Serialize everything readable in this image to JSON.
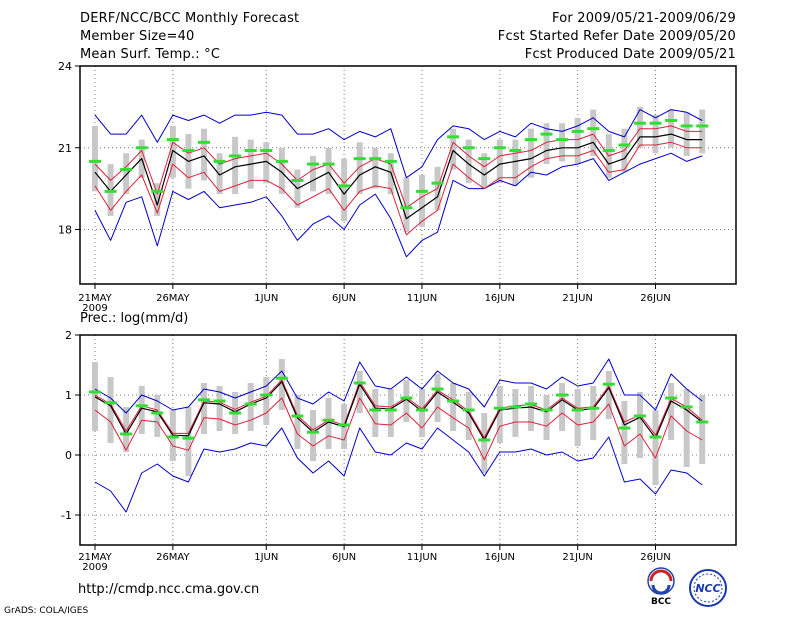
{
  "header": {
    "title": "DERF/NCC/BCC Monthly Forecast",
    "member_size": "Member Size=40",
    "variable": "Mean Surf. Temp.: °C",
    "valid_period": "For 2009/05/21-2009/06/29",
    "refer_date": "Fcst Started Refer Date 2009/05/20",
    "produced_date": "Fcst Produced Date 2009/05/21"
  },
  "footer": {
    "url": "http://cmdp.ncc.cma.gov.cn",
    "credit": "GrADS: COLA/IGES",
    "logo_bcc": "BCC",
    "logo_ncc": "NCC"
  },
  "colors": {
    "ensemble_mean": "#000000",
    "inner_spread": "#e0203a",
    "outer_spread": "#0000cc",
    "box": "#c8c8c8",
    "member_marker": "#33dd33"
  },
  "chart_data": [
    {
      "type": "line",
      "title": "Mean Surf. Temp.: °C",
      "x_tick_labels": [
        "21MAY",
        "26MAY",
        "1JUN",
        "6JUN",
        "11JUN",
        "16JUN",
        "21JUN",
        "26JUN"
      ],
      "x_tick_index": [
        0,
        5,
        11,
        16,
        21,
        26,
        31,
        36
      ],
      "year_label": "2009",
      "ylim": [
        16,
        24
      ],
      "y_ticks": [
        18,
        21,
        24
      ],
      "grid": true,
      "series": [
        {
          "name": "ensemble mean",
          "values": [
            20.1,
            19.4,
            20.0,
            20.6,
            18.9,
            20.9,
            20.5,
            20.7,
            20.0,
            20.3,
            20.4,
            20.5,
            20.1,
            19.5,
            19.8,
            20.1,
            19.3,
            20.0,
            20.3,
            20.1,
            18.4,
            18.8,
            19.2,
            20.9,
            20.4,
            20.0,
            20.4,
            20.5,
            20.6,
            20.9,
            21.0,
            21.0,
            21.2,
            20.4,
            20.6,
            21.4,
            21.4,
            21.5,
            21.3,
            21.3
          ]
        },
        {
          "name": "upper red",
          "values": [
            20.4,
            19.8,
            20.3,
            20.9,
            19.3,
            21.2,
            20.8,
            21.0,
            20.4,
            20.6,
            20.7,
            20.8,
            20.4,
            19.8,
            20.2,
            20.4,
            19.7,
            20.3,
            20.6,
            20.4,
            18.8,
            19.2,
            19.5,
            21.2,
            20.7,
            20.3,
            20.7,
            20.8,
            20.9,
            21.2,
            21.3,
            21.3,
            21.5,
            20.7,
            20.9,
            21.7,
            21.7,
            21.8,
            21.6,
            21.6
          ]
        },
        {
          "name": "lower red",
          "values": [
            19.6,
            18.7,
            19.4,
            20.0,
            18.6,
            20.4,
            19.9,
            20.1,
            19.4,
            19.6,
            19.8,
            19.8,
            19.5,
            18.9,
            19.2,
            19.5,
            18.7,
            19.4,
            19.6,
            19.5,
            17.8,
            18.3,
            18.7,
            20.4,
            19.9,
            19.5,
            19.9,
            19.9,
            20.3,
            20.6,
            20.7,
            20.7,
            20.9,
            20.1,
            20.2,
            21.1,
            21.1,
            21.2,
            21.0,
            21.0
          ]
        },
        {
          "name": "upper blue",
          "values": [
            22.2,
            21.5,
            21.5,
            22.2,
            21.2,
            22.2,
            22.0,
            22.2,
            21.9,
            22.2,
            22.2,
            22.3,
            22.2,
            21.5,
            21.5,
            21.7,
            21.3,
            21.6,
            21.4,
            21.7,
            19.9,
            20.3,
            21.3,
            21.8,
            21.7,
            21.3,
            21.6,
            21.4,
            21.9,
            21.7,
            21.6,
            21.8,
            22.1,
            21.6,
            21.4,
            22.4,
            22.1,
            22.4,
            22.3,
            22.0
          ]
        },
        {
          "name": "lower blue",
          "values": [
            18.7,
            17.6,
            19.0,
            19.2,
            17.4,
            19.4,
            19.1,
            19.4,
            18.8,
            18.9,
            19.0,
            19.2,
            18.5,
            17.6,
            18.2,
            18.5,
            18.0,
            18.9,
            19.3,
            18.4,
            17.0,
            17.6,
            17.9,
            19.8,
            19.5,
            19.5,
            19.8,
            19.6,
            20.1,
            20.0,
            20.3,
            20.4,
            20.6,
            19.8,
            20.1,
            20.4,
            20.6,
            20.8,
            20.5,
            20.7
          ]
        },
        {
          "name": "box top",
          "values": [
            21.8,
            20.4,
            20.8,
            21.3,
            19.7,
            21.8,
            21.5,
            21.7,
            20.8,
            21.4,
            21.3,
            21.2,
            21.0,
            20.2,
            20.7,
            21.0,
            20.6,
            21.2,
            21.0,
            20.8,
            19.9,
            20.0,
            20.3,
            21.7,
            21.3,
            20.8,
            21.3,
            21.3,
            21.7,
            21.9,
            21.9,
            22.1,
            22.4,
            21.5,
            21.7,
            22.5,
            22.2,
            22.4,
            22.3,
            22.4
          ]
        },
        {
          "name": "box bottom",
          "values": [
            19.4,
            18.5,
            19.3,
            19.9,
            18.5,
            19.9,
            19.5,
            19.8,
            19.3,
            19.3,
            19.5,
            19.7,
            19.3,
            18.8,
            19.4,
            19.3,
            18.3,
            19.3,
            19.5,
            19.3,
            17.9,
            18.1,
            18.7,
            20.2,
            19.7,
            19.5,
            19.7,
            19.6,
            19.9,
            20.4,
            20.5,
            20.4,
            20.7,
            19.9,
            20.1,
            21.0,
            20.8,
            21.0,
            20.7,
            20.8
          ]
        },
        {
          "name": "member marker",
          "values": [
            20.5,
            19.4,
            20.2,
            21.0,
            19.4,
            21.3,
            20.9,
            21.2,
            20.5,
            20.7,
            20.9,
            20.9,
            20.5,
            19.8,
            20.4,
            20.4,
            19.6,
            20.6,
            20.6,
            20.5,
            18.8,
            19.4,
            19.7,
            21.4,
            21.0,
            20.6,
            21.0,
            20.9,
            21.3,
            21.5,
            21.3,
            21.6,
            21.7,
            20.9,
            21.1,
            21.9,
            21.9,
            22.0,
            21.8,
            21.8
          ]
        }
      ]
    },
    {
      "type": "line",
      "title": "Prec.: log(mm/d)",
      "x_tick_labels": [
        "21MAY",
        "26MAY",
        "1JUN",
        "6JUN",
        "11JUN",
        "16JUN",
        "21JUN",
        "26JUN"
      ],
      "x_tick_index": [
        0,
        5,
        11,
        16,
        21,
        26,
        31,
        36
      ],
      "year_label": "2009",
      "ylim": [
        -1.5,
        2
      ],
      "y_ticks": [
        -1,
        0,
        1,
        2
      ],
      "grid": true,
      "series": [
        {
          "name": "ensemble mean",
          "values": [
            0.97,
            0.82,
            0.35,
            0.78,
            0.72,
            0.33,
            0.32,
            0.87,
            0.85,
            0.72,
            0.85,
            0.95,
            1.22,
            0.62,
            0.38,
            0.55,
            0.47,
            1.18,
            0.78,
            0.77,
            0.93,
            0.73,
            1.05,
            0.88,
            0.7,
            0.25,
            0.75,
            0.78,
            0.8,
            0.72,
            0.92,
            0.75,
            0.77,
            1.12,
            0.5,
            0.63,
            0.28,
            0.9,
            0.75,
            0.55
          ]
        },
        {
          "name": "upper red",
          "values": [
            1.0,
            0.85,
            0.4,
            0.82,
            0.75,
            0.36,
            0.36,
            0.9,
            0.88,
            0.76,
            0.88,
            0.98,
            1.25,
            0.66,
            0.42,
            0.58,
            0.5,
            1.22,
            0.82,
            0.8,
            0.96,
            0.77,
            1.08,
            0.92,
            0.73,
            0.29,
            0.78,
            0.82,
            0.84,
            0.75,
            0.95,
            0.78,
            0.8,
            1.15,
            0.55,
            0.67,
            0.33,
            0.94,
            0.8,
            0.58
          ]
        },
        {
          "name": "lower red",
          "values": [
            0.75,
            0.55,
            0.08,
            0.58,
            0.55,
            0.15,
            0.08,
            0.62,
            0.6,
            0.5,
            0.58,
            0.7,
            0.95,
            0.35,
            0.15,
            0.32,
            0.25,
            0.95,
            0.52,
            0.5,
            0.7,
            0.45,
            0.8,
            0.62,
            0.45,
            -0.08,
            0.48,
            0.55,
            0.55,
            0.48,
            0.7,
            0.5,
            0.55,
            0.85,
            0.15,
            0.35,
            -0.05,
            0.65,
            0.4,
            0.25
          ]
        },
        {
          "name": "upper blue",
          "values": [
            1.1,
            0.95,
            0.7,
            1.0,
            0.9,
            0.75,
            0.8,
            1.1,
            1.05,
            0.95,
            1.05,
            1.15,
            1.4,
            0.95,
            0.85,
            1.05,
            0.9,
            1.55,
            1.15,
            1.1,
            1.3,
            1.1,
            1.4,
            1.2,
            1.1,
            0.8,
            1.25,
            1.2,
            1.2,
            1.1,
            1.3,
            1.15,
            1.2,
            1.6,
            1.0,
            1.0,
            0.75,
            1.35,
            1.1,
            0.9
          ]
        },
        {
          "name": "lower blue",
          "values": [
            -0.45,
            -0.6,
            -0.95,
            -0.3,
            -0.15,
            -0.35,
            -0.45,
            0.1,
            0.05,
            0.1,
            0.2,
            0.15,
            0.45,
            -0.05,
            -0.3,
            -0.1,
            -0.35,
            0.45,
            0.05,
            0.0,
            0.2,
            0.1,
            0.45,
            0.25,
            0.05,
            -0.35,
            0.05,
            0.05,
            0.1,
            0.0,
            0.05,
            -0.1,
            -0.05,
            0.3,
            -0.45,
            -0.4,
            -0.65,
            -0.25,
            -0.3,
            -0.5
          ]
        },
        {
          "name": "box top",
          "values": [
            1.55,
            1.3,
            0.8,
            1.15,
            1.0,
            0.75,
            0.8,
            1.2,
            1.15,
            1.05,
            1.2,
            1.3,
            1.6,
            1.0,
            0.75,
            0.95,
            0.85,
            1.4,
            1.1,
            1.1,
            1.25,
            1.1,
            1.35,
            1.2,
            1.05,
            0.7,
            1.15,
            1.1,
            1.15,
            1.0,
            1.2,
            1.1,
            1.15,
            1.4,
            0.9,
            1.05,
            0.75,
            1.2,
            1.1,
            1.0
          ]
        },
        {
          "name": "box bottom",
          "values": [
            0.4,
            0.2,
            0.05,
            0.35,
            0.3,
            -0.1,
            -0.35,
            0.35,
            0.4,
            0.35,
            0.4,
            0.5,
            0.75,
            0.1,
            -0.1,
            0.1,
            0.1,
            0.7,
            0.3,
            0.3,
            0.55,
            0.3,
            0.55,
            0.4,
            0.25,
            -0.3,
            0.2,
            0.3,
            0.4,
            0.25,
            0.4,
            0.15,
            0.25,
            0.6,
            -0.15,
            -0.05,
            -0.5,
            0.25,
            -0.2,
            -0.15
          ]
        },
        {
          "name": "member marker",
          "values": [
            1.05,
            0.87,
            0.35,
            0.82,
            0.7,
            0.3,
            0.28,
            0.92,
            0.9,
            0.7,
            0.85,
            1.0,
            1.28,
            0.65,
            0.38,
            0.58,
            0.5,
            1.2,
            0.75,
            0.75,
            0.95,
            0.75,
            1.1,
            0.9,
            0.75,
            0.25,
            0.78,
            0.8,
            0.85,
            0.75,
            1.0,
            0.75,
            0.78,
            1.18,
            0.45,
            0.65,
            0.3,
            0.95,
            0.8,
            0.55
          ]
        }
      ]
    }
  ]
}
